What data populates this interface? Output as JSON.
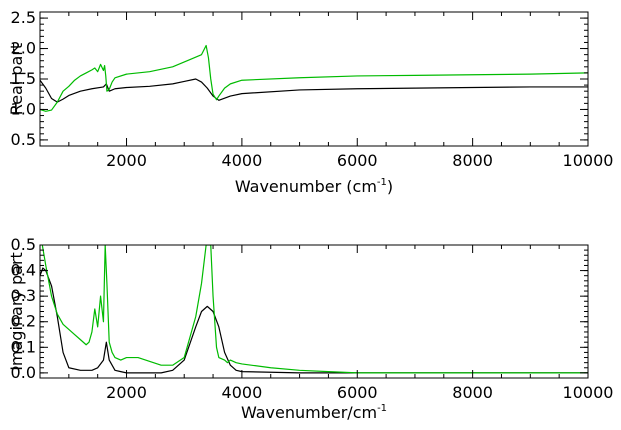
{
  "chart_data": [
    {
      "type": "line",
      "ylabel": "Real part",
      "xlabel": "Wavenumber (cm",
      "xlabel_sup": "-1",
      "xlabel_close": ")",
      "xlim": [
        500,
        10000
      ],
      "ylim": [
        0.4,
        2.6
      ],
      "xticks": [
        2000,
        4000,
        6000,
        8000,
        10000
      ],
      "yticks": [
        0.5,
        1.0,
        1.5,
        2.0,
        2.5
      ],
      "xtick_labels": [
        "2000",
        "4000",
        "6000",
        "8000",
        "10000"
      ],
      "ytick_labels": [
        "0.5",
        "1.0",
        "1.5",
        "2.0",
        "2.5"
      ],
      "grid": false,
      "series": [
        {
          "color": "#000000",
          "x": [
            500,
            600,
            700,
            800,
            900,
            1000,
            1200,
            1400,
            1600,
            1650,
            1700,
            1800,
            2000,
            2400,
            2800,
            3000,
            3200,
            3300,
            3400,
            3500,
            3600,
            3800,
            4000,
            5000,
            6000,
            7000,
            8000,
            9000,
            10000
          ],
          "y": [
            1.48,
            1.35,
            1.18,
            1.12,
            1.17,
            1.23,
            1.3,
            1.34,
            1.37,
            1.42,
            1.3,
            1.34,
            1.36,
            1.38,
            1.42,
            1.46,
            1.5,
            1.45,
            1.35,
            1.22,
            1.15,
            1.22,
            1.26,
            1.32,
            1.34,
            1.35,
            1.36,
            1.37,
            1.37
          ]
        },
        {
          "color": "#00bb00",
          "x": [
            500,
            600,
            700,
            800,
            900,
            1000,
            1100,
            1200,
            1300,
            1400,
            1450,
            1500,
            1550,
            1600,
            1620,
            1640,
            1660,
            1700,
            1750,
            1800,
            2000,
            2400,
            2800,
            3100,
            3300,
            3380,
            3420,
            3460,
            3500,
            3560,
            3600,
            3700,
            3800,
            4000,
            5000,
            6000,
            7000,
            8000,
            9000,
            10000
          ],
          "y": [
            1.0,
            0.97,
            0.99,
            1.12,
            1.3,
            1.38,
            1.48,
            1.55,
            1.6,
            1.65,
            1.68,
            1.62,
            1.74,
            1.64,
            1.72,
            1.55,
            1.3,
            1.33,
            1.45,
            1.52,
            1.58,
            1.62,
            1.7,
            1.82,
            1.9,
            2.05,
            1.85,
            1.5,
            1.25,
            1.16,
            1.22,
            1.35,
            1.42,
            1.48,
            1.52,
            1.55,
            1.56,
            1.57,
            1.58,
            1.6
          ]
        }
      ]
    },
    {
      "type": "line",
      "ylabel": "Imaginary part",
      "xlabel": "Wavenumber/cm",
      "xlabel_sup": "-1",
      "xlim": [
        500,
        10000
      ],
      "ylim": [
        -0.02,
        0.5
      ],
      "xticks": [
        2000,
        4000,
        6000,
        8000,
        10000
      ],
      "yticks": [
        0.0,
        0.1,
        0.2,
        0.3,
        0.4,
        0.5
      ],
      "xtick_labels": [
        "2000",
        "4000",
        "6000",
        "8000",
        "10000"
      ],
      "ytick_labels": [
        "0.0",
        "0.1",
        "0.2",
        "0.3",
        "0.4",
        "0.5"
      ],
      "grid": false,
      "series": [
        {
          "color": "#000000",
          "x": [
            500,
            550,
            600,
            700,
            800,
            900,
            1000,
            1200,
            1400,
            1500,
            1600,
            1650,
            1700,
            1800,
            1900,
            2000,
            2200,
            2600,
            2800,
            3000,
            3200,
            3300,
            3400,
            3500,
            3600,
            3700,
            3800,
            3900,
            4000,
            5000,
            6000,
            8000,
            10000
          ],
          "y": [
            0.38,
            0.41,
            0.4,
            0.34,
            0.22,
            0.08,
            0.02,
            0.01,
            0.01,
            0.02,
            0.05,
            0.12,
            0.05,
            0.01,
            0.005,
            0.0,
            0.0,
            0.0,
            0.01,
            0.05,
            0.18,
            0.24,
            0.26,
            0.24,
            0.18,
            0.08,
            0.03,
            0.01,
            0.005,
            0.0,
            0.0,
            0.0,
            0.0
          ]
        },
        {
          "color": "#00bb00",
          "x": [
            540,
            600,
            700,
            800,
            900,
            1000,
            1100,
            1200,
            1300,
            1350,
            1400,
            1450,
            1500,
            1550,
            1600,
            1630,
            1660,
            1700,
            1750,
            1800,
            1900,
            2000,
            2200,
            2600,
            2800,
            3000,
            3200,
            3300,
            3380,
            3420,
            3460,
            3500,
            3560,
            3600,
            3700,
            3750,
            3800,
            3900,
            4000,
            4500,
            5000,
            5500,
            6000,
            7000,
            8000,
            10000
          ],
          "y": [
            0.5,
            0.42,
            0.3,
            0.23,
            0.19,
            0.17,
            0.15,
            0.13,
            0.11,
            0.12,
            0.16,
            0.25,
            0.18,
            0.3,
            0.2,
            0.5,
            0.35,
            0.12,
            0.08,
            0.06,
            0.05,
            0.06,
            0.06,
            0.03,
            0.03,
            0.06,
            0.22,
            0.35,
            0.5,
            0.5,
            0.5,
            0.3,
            0.1,
            0.06,
            0.05,
            0.04,
            0.05,
            0.04,
            0.035,
            0.02,
            0.01,
            0.005,
            0.0,
            0.0,
            0.0,
            0.0
          ]
        }
      ]
    }
  ]
}
